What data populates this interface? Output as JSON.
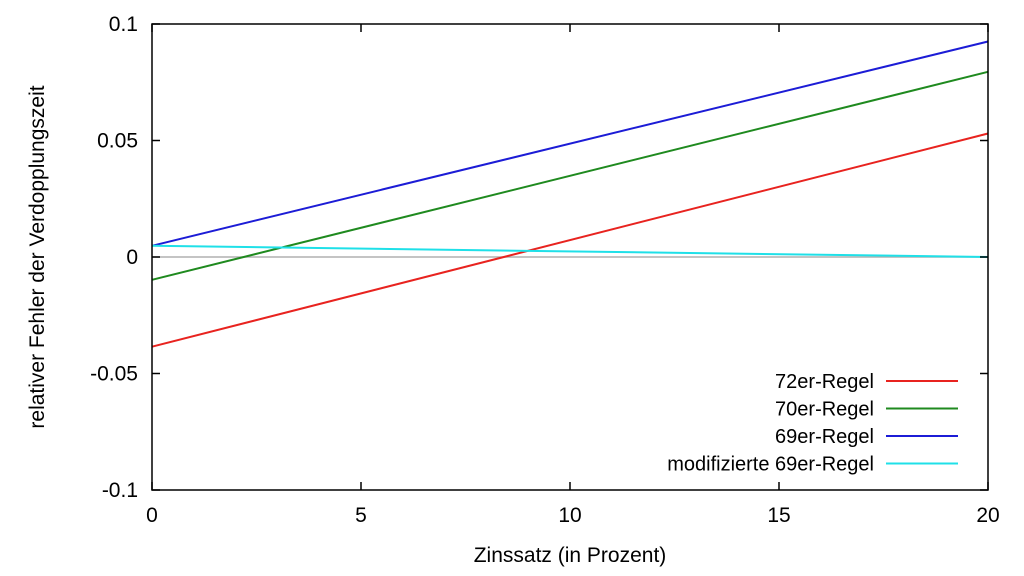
{
  "chart_data": {
    "type": "line",
    "title": "",
    "xlabel": "Zinssatz (in Prozent)",
    "ylabel": "relativer Fehler der Verdopplungszeit",
    "xlim": [
      0,
      20
    ],
    "ylim": [
      -0.1,
      0.1
    ],
    "x_ticks": [
      0,
      5,
      10,
      15,
      20
    ],
    "x_tick_labels": [
      "0",
      "5",
      "10",
      "15",
      "20"
    ],
    "y_ticks": [
      -0.1,
      -0.05,
      0,
      0.05,
      0.1
    ],
    "y_tick_labels": [
      "-0.1",
      "-0.05",
      "0",
      "0.05",
      "0.1"
    ],
    "grid": false,
    "zero_line": true,
    "legend_position": "bottom-right",
    "series": [
      {
        "name": "72er-Regel",
        "color": "#e8231f",
        "x": [
          0,
          20
        ],
        "y": [
          -0.0385,
          0.053
        ]
      },
      {
        "name": "70er-Regel",
        "color": "#1f8a1f",
        "x": [
          0,
          20
        ],
        "y": [
          -0.0098,
          0.0795
        ]
      },
      {
        "name": "69er-Regel",
        "color": "#1c1cd6",
        "x": [
          0,
          20
        ],
        "y": [
          0.0048,
          0.0925
        ]
      },
      {
        "name": "modifizierte 69er-Regel",
        "color": "#1fe0e8",
        "x": [
          0,
          20
        ],
        "y": [
          0.0048,
          0.0
        ]
      }
    ]
  }
}
